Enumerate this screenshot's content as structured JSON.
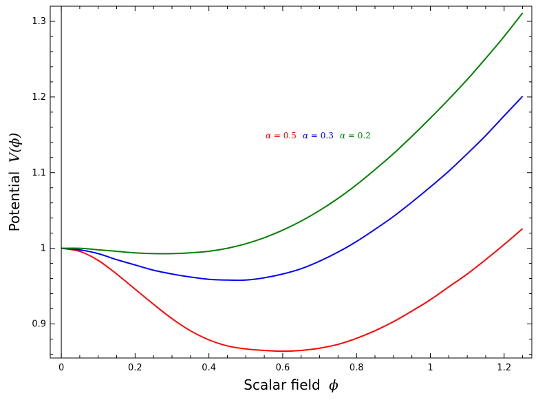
{
  "chart_data": {
    "type": "line",
    "title": "",
    "xlabel": "Scalar field",
    "xlabel_symbol": "ϕ",
    "ylabel": "Potential",
    "ylabel_symbol": "V(ϕ)",
    "xlim": [
      -0.03,
      1.275
    ],
    "ylim": [
      0.855,
      1.32
    ],
    "x_ticks": [
      0,
      0.2,
      0.4,
      0.6,
      0.8,
      1,
      1.2
    ],
    "x_tick_labels": [
      "0",
      "0.2",
      "0.4",
      "0.6",
      "0.8",
      "1",
      "1.2"
    ],
    "y_ticks": [
      0.9,
      1.0,
      1.1,
      1.2,
      1.3
    ],
    "y_tick_labels": [
      "0.9",
      "1",
      "1.1",
      "1.2",
      "1.3"
    ],
    "grid": false,
    "legend": "center, inline annotations",
    "series": [
      {
        "name": "α = 0.5",
        "color": "#ff0000",
        "x": [
          0,
          0.05,
          0.1,
          0.15,
          0.2,
          0.25,
          0.3,
          0.35,
          0.4,
          0.45,
          0.5,
          0.55,
          0.6,
          0.65,
          0.7,
          0.75,
          0.8,
          0.85,
          0.9,
          0.95,
          1.0,
          1.05,
          1.1,
          1.15,
          1.2,
          1.25
        ],
        "y": [
          1.0,
          0.996,
          0.984,
          0.966,
          0.946,
          0.926,
          0.907,
          0.891,
          0.879,
          0.871,
          0.867,
          0.865,
          0.864,
          0.865,
          0.868,
          0.873,
          0.881,
          0.891,
          0.903,
          0.917,
          0.932,
          0.949,
          0.966,
          0.985,
          1.005,
          1.026
        ]
      },
      {
        "name": "α = 0.3",
        "color": "#0000ff",
        "x": [
          0,
          0.05,
          0.1,
          0.15,
          0.2,
          0.25,
          0.3,
          0.35,
          0.4,
          0.45,
          0.5,
          0.55,
          0.6,
          0.65,
          0.7,
          0.75,
          0.8,
          0.85,
          0.9,
          0.95,
          1.0,
          1.05,
          1.1,
          1.15,
          1.2,
          1.25
        ],
        "y": [
          1.0,
          0.998,
          0.993,
          0.985,
          0.978,
          0.971,
          0.966,
          0.962,
          0.959,
          0.958,
          0.958,
          0.961,
          0.966,
          0.973,
          0.983,
          0.995,
          1.009,
          1.025,
          1.042,
          1.061,
          1.081,
          1.102,
          1.125,
          1.149,
          1.175,
          1.201
        ]
      },
      {
        "name": "α = 0.2",
        "color": "#008000",
        "x": [
          0,
          0.05,
          0.1,
          0.15,
          0.2,
          0.25,
          0.3,
          0.35,
          0.4,
          0.45,
          0.5,
          0.55,
          0.6,
          0.65,
          0.7,
          0.75,
          0.8,
          0.85,
          0.9,
          0.95,
          1.0,
          1.05,
          1.1,
          1.15,
          1.2,
          1.25
        ],
        "y": [
          1.0,
          1.0,
          0.998,
          0.996,
          0.994,
          0.993,
          0.993,
          0.994,
          0.996,
          1.0,
          1.006,
          1.014,
          1.024,
          1.036,
          1.05,
          1.066,
          1.084,
          1.104,
          1.125,
          1.148,
          1.172,
          1.197,
          1.223,
          1.251,
          1.28,
          1.311
        ]
      }
    ],
    "annotations": [
      {
        "prefix": "α",
        "eq": "=",
        "value": "0.5",
        "color": "#ff0000"
      },
      {
        "prefix": "α",
        "eq": "=",
        "value": "0.3",
        "color": "#0000ff"
      },
      {
        "prefix": "α",
        "eq": "=",
        "value": "0.2",
        "color": "#008000"
      }
    ]
  }
}
